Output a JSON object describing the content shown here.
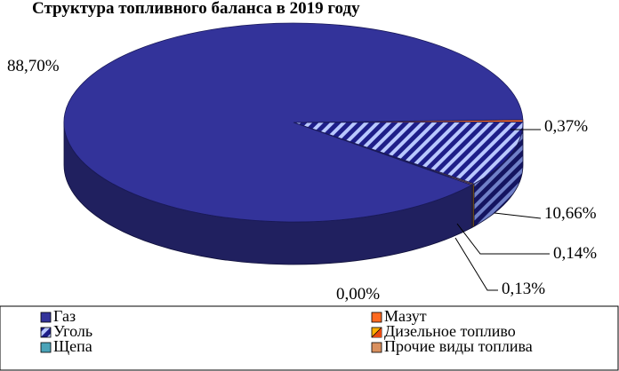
{
  "chart_data": {
    "type": "pie",
    "title": "Структура топливного баланса в 2019 году",
    "series": [
      {
        "name": "Газ",
        "value": 88.7,
        "label": "88,70%",
        "color": "#33339a"
      },
      {
        "name": "Мазут",
        "value": 0.37,
        "label": "0,37%",
        "color": "#ff6a21"
      },
      {
        "name": "Уголь",
        "value": 10.66,
        "label": "10,66%",
        "color": "#8aa2ee",
        "pattern": "diagonal-stripes"
      },
      {
        "name": "Дизельное топливо",
        "value": 0.14,
        "label": "0,14%",
        "color": "#ffb000",
        "pattern": "diagonal-half"
      },
      {
        "name": "Щепа",
        "value": 0.0,
        "label": "0,00%",
        "color": "#4aa3b8"
      },
      {
        "name": "Прочие виды топлива",
        "value": 0.13,
        "label": "0,13%",
        "color": "#d9905f"
      }
    ],
    "style": "3d",
    "legend_position": "bottom"
  }
}
